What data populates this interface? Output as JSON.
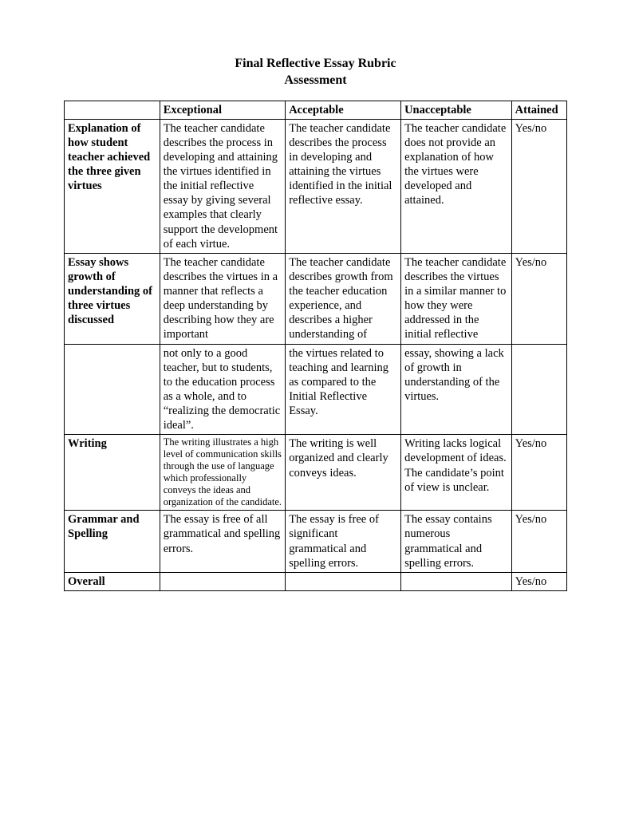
{
  "title_line1": "Final Reflective Essay Rubric",
  "title_line2": "Assessment",
  "columns": {
    "c1": "",
    "c2": "Exceptional",
    "c3": "Acceptable",
    "c4": "Unacceptable",
    "c5": "Attained"
  },
  "rows": {
    "r1": {
      "label": "Explanation of how student teacher achieved the three given virtues",
      "exceptional": "The teacher candidate describes the process in developing and attaining the virtues identified in the initial reflective essay by giving several examples that clearly support the development of each virtue.",
      "acceptable": "The teacher candidate describes the process in developing and attaining the virtues identified in the initial reflective essay.",
      "unacceptable": "The teacher candidate does not provide an explanation of how the virtues were developed and attained.",
      "attained": "Yes/no"
    },
    "r2a": {
      "label": "Essay shows growth of understanding of three virtues discussed",
      "exceptional": "The teacher candidate describes the virtues in a manner that reflects a deep understanding by describing  how they are important",
      "acceptable": "The teacher candidate describes growth from the teacher education experience, and describes a higher understanding of",
      "unacceptable": "The teacher candidate describes the virtues in a similar manner to how they were addressed in the initial reflective",
      "attained": "Yes/no"
    },
    "r2b": {
      "label": "",
      "exceptional": "not only to a good teacher, but to students, to the education process as a whole, and to “realizing the democratic ideal”.",
      "acceptable": "the virtues related to teaching and learning as compared to the Initial Reflective Essay.",
      "unacceptable": "essay, showing a lack of growth in understanding of the virtues.",
      "attained": ""
    },
    "r3": {
      "label": "Writing",
      "exceptional": "The writing illustrates a high level of communication skills through the use of language which professionally conveys the ideas and organization of the candidate.",
      "acceptable": "The writing is well organized and clearly conveys ideas.",
      "unacceptable": "Writing lacks logical development of ideas.  The candidate’s point of view is unclear.",
      "attained": "Yes/no"
    },
    "r4": {
      "label": "Grammar and Spelling",
      "exceptional": "The essay is free of all grammatical and spelling errors.",
      "acceptable": "The essay is free of significant grammatical and spelling errors.",
      "unacceptable": "The essay contains numerous grammatical and spelling errors.",
      "attained": "Yes/no"
    },
    "r5": {
      "label": "Overall",
      "exceptional": "",
      "acceptable": "",
      "unacceptable": "",
      "attained": "Yes/no"
    }
  }
}
